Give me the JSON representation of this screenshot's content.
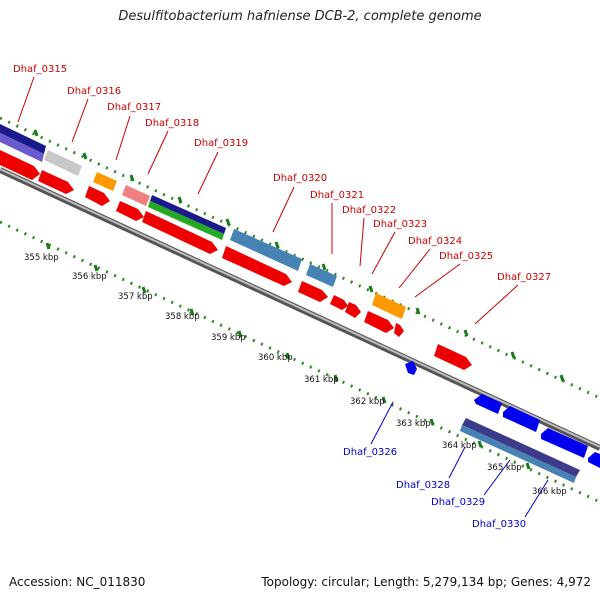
{
  "title": "Desulfitobacterium hafniense DCB-2, complete genome",
  "footer": {
    "accession": "Accession: NC_011830",
    "summary": "Topology: circular; Length: 5,279,134 bp; Genes: 4,972"
  },
  "colors": {
    "backbone": "#888888",
    "forward_label": "#cc0000",
    "reverse_label": "#0000cc",
    "tick": "#228b22"
  },
  "kbp_labels": [
    "355 kbp",
    "356 kbp",
    "357 kbp",
    "358 kbp",
    "359 kbp",
    "360 kbp",
    "361 kbp",
    "362 kbp",
    "363 kbp",
    "364 kbp",
    "365 kbp",
    "366 kbp"
  ],
  "genes": [
    {
      "id": "Dhaf_0315",
      "strand": "forward",
      "color": "#1a1a8c"
    },
    {
      "id": "Dhaf_0316",
      "strand": "forward",
      "color": "#c8c8c8"
    },
    {
      "id": "Dhaf_0317",
      "strand": "forward",
      "color": "#ff9900"
    },
    {
      "id": "Dhaf_0318",
      "strand": "forward",
      "color": "#f08080"
    },
    {
      "id": "Dhaf_0319",
      "strand": "forward",
      "color": "#22aa22"
    },
    {
      "id": "Dhaf_0320",
      "strand": "forward",
      "color": "#4682b4"
    },
    {
      "id": "Dhaf_0321",
      "strand": "forward",
      "color": "#4682b4"
    },
    {
      "id": "Dhaf_0322",
      "strand": "forward",
      "color": "#ff0000"
    },
    {
      "id": "Dhaf_0323",
      "strand": "forward",
      "color": "#ff0000"
    },
    {
      "id": "Dhaf_0324",
      "strand": "forward",
      "color": "#ff9900"
    },
    {
      "id": "Dhaf_0325",
      "strand": "forward",
      "color": "#ff0000"
    },
    {
      "id": "Dhaf_0327",
      "strand": "forward",
      "color": "#ff0000"
    },
    {
      "id": "Dhaf_0326",
      "strand": "reverse",
      "color": "#0000ff"
    },
    {
      "id": "Dhaf_0328",
      "strand": "reverse",
      "color": "#1a1a8c"
    },
    {
      "id": "Dhaf_0329",
      "strand": "reverse",
      "color": "#4682b4"
    },
    {
      "id": "Dhaf_0330",
      "strand": "reverse",
      "color": "#0000ff"
    }
  ]
}
